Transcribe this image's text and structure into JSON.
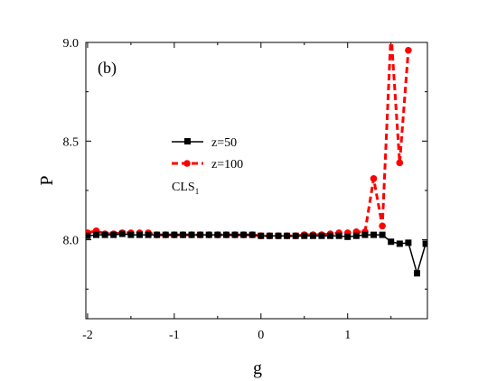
{
  "chart_data": {
    "type": "line",
    "panel_label": "(b)",
    "xlabel": "g",
    "ylabel": "P",
    "xlim": [
      -2.02,
      1.92
    ],
    "ylim": [
      7.6,
      9.0
    ],
    "xticks": [
      -2,
      -1,
      0,
      1
    ],
    "yticks": [
      8.0,
      8.5,
      9.0
    ],
    "xtick_labels": [
      "-2",
      "-1",
      "0",
      "1"
    ],
    "ytick_labels": [
      "8.0",
      "8.5",
      "9.0"
    ],
    "grid": false,
    "legend_position": "center-left",
    "annotation": {
      "text": "CLS",
      "subscript": "1"
    },
    "colors": {
      "series_0": "#000000",
      "series_1": "#ff0000"
    },
    "series": [
      {
        "name": "z=50",
        "marker": "square",
        "style": "solid",
        "x": [
          -2.0,
          -1.9,
          -1.8,
          -1.7,
          -1.6,
          -1.5,
          -1.4,
          -1.3,
          -1.2,
          -1.1,
          -1.0,
          -0.9,
          -0.8,
          -0.7,
          -0.6,
          -0.5,
          -0.4,
          -0.3,
          -0.2,
          -0.1,
          0.0,
          0.1,
          0.2,
          0.3,
          0.4,
          0.5,
          0.6,
          0.7,
          0.8,
          0.9,
          1.0,
          1.1,
          1.2,
          1.3,
          1.4,
          1.5,
          1.6,
          1.7,
          1.8,
          1.9
        ],
        "y": [
          8.02,
          8.025,
          8.025,
          8.025,
          8.03,
          8.025,
          8.025,
          8.025,
          8.025,
          8.025,
          8.025,
          8.025,
          8.025,
          8.025,
          8.025,
          8.025,
          8.025,
          8.025,
          8.025,
          8.025,
          8.02,
          8.02,
          8.02,
          8.02,
          8.02,
          8.02,
          8.02,
          8.02,
          8.02,
          8.02,
          8.015,
          8.02,
          8.025,
          8.025,
          8.025,
          7.99,
          7.98,
          7.985,
          7.83,
          7.98
        ]
      },
      {
        "name": "z=100",
        "marker": "circle",
        "style": "dashed",
        "x": [
          -2.0,
          -1.9,
          -1.8,
          -1.7,
          -1.6,
          -1.5,
          -1.4,
          -1.3,
          -1.2,
          -1.1,
          -1.0,
          -0.9,
          -0.8,
          -0.7,
          -0.6,
          -0.5,
          -0.4,
          -0.3,
          -0.2,
          -0.1,
          0.0,
          0.1,
          0.2,
          0.3,
          0.4,
          0.5,
          0.6,
          0.7,
          0.8,
          0.9,
          1.0,
          1.1,
          1.2,
          1.3,
          1.4,
          1.5,
          1.6,
          1.7
        ],
        "y": [
          8.035,
          8.045,
          8.03,
          8.03,
          8.035,
          8.035,
          8.035,
          8.035,
          8.025,
          8.025,
          8.025,
          8.025,
          8.025,
          8.025,
          8.025,
          8.025,
          8.025,
          8.025,
          8.025,
          8.025,
          8.02,
          8.02,
          8.02,
          8.02,
          8.02,
          8.025,
          8.025,
          8.025,
          8.03,
          8.035,
          8.035,
          8.04,
          8.04,
          8.31,
          8.07,
          9.05,
          8.39,
          8.96
        ]
      }
    ]
  }
}
